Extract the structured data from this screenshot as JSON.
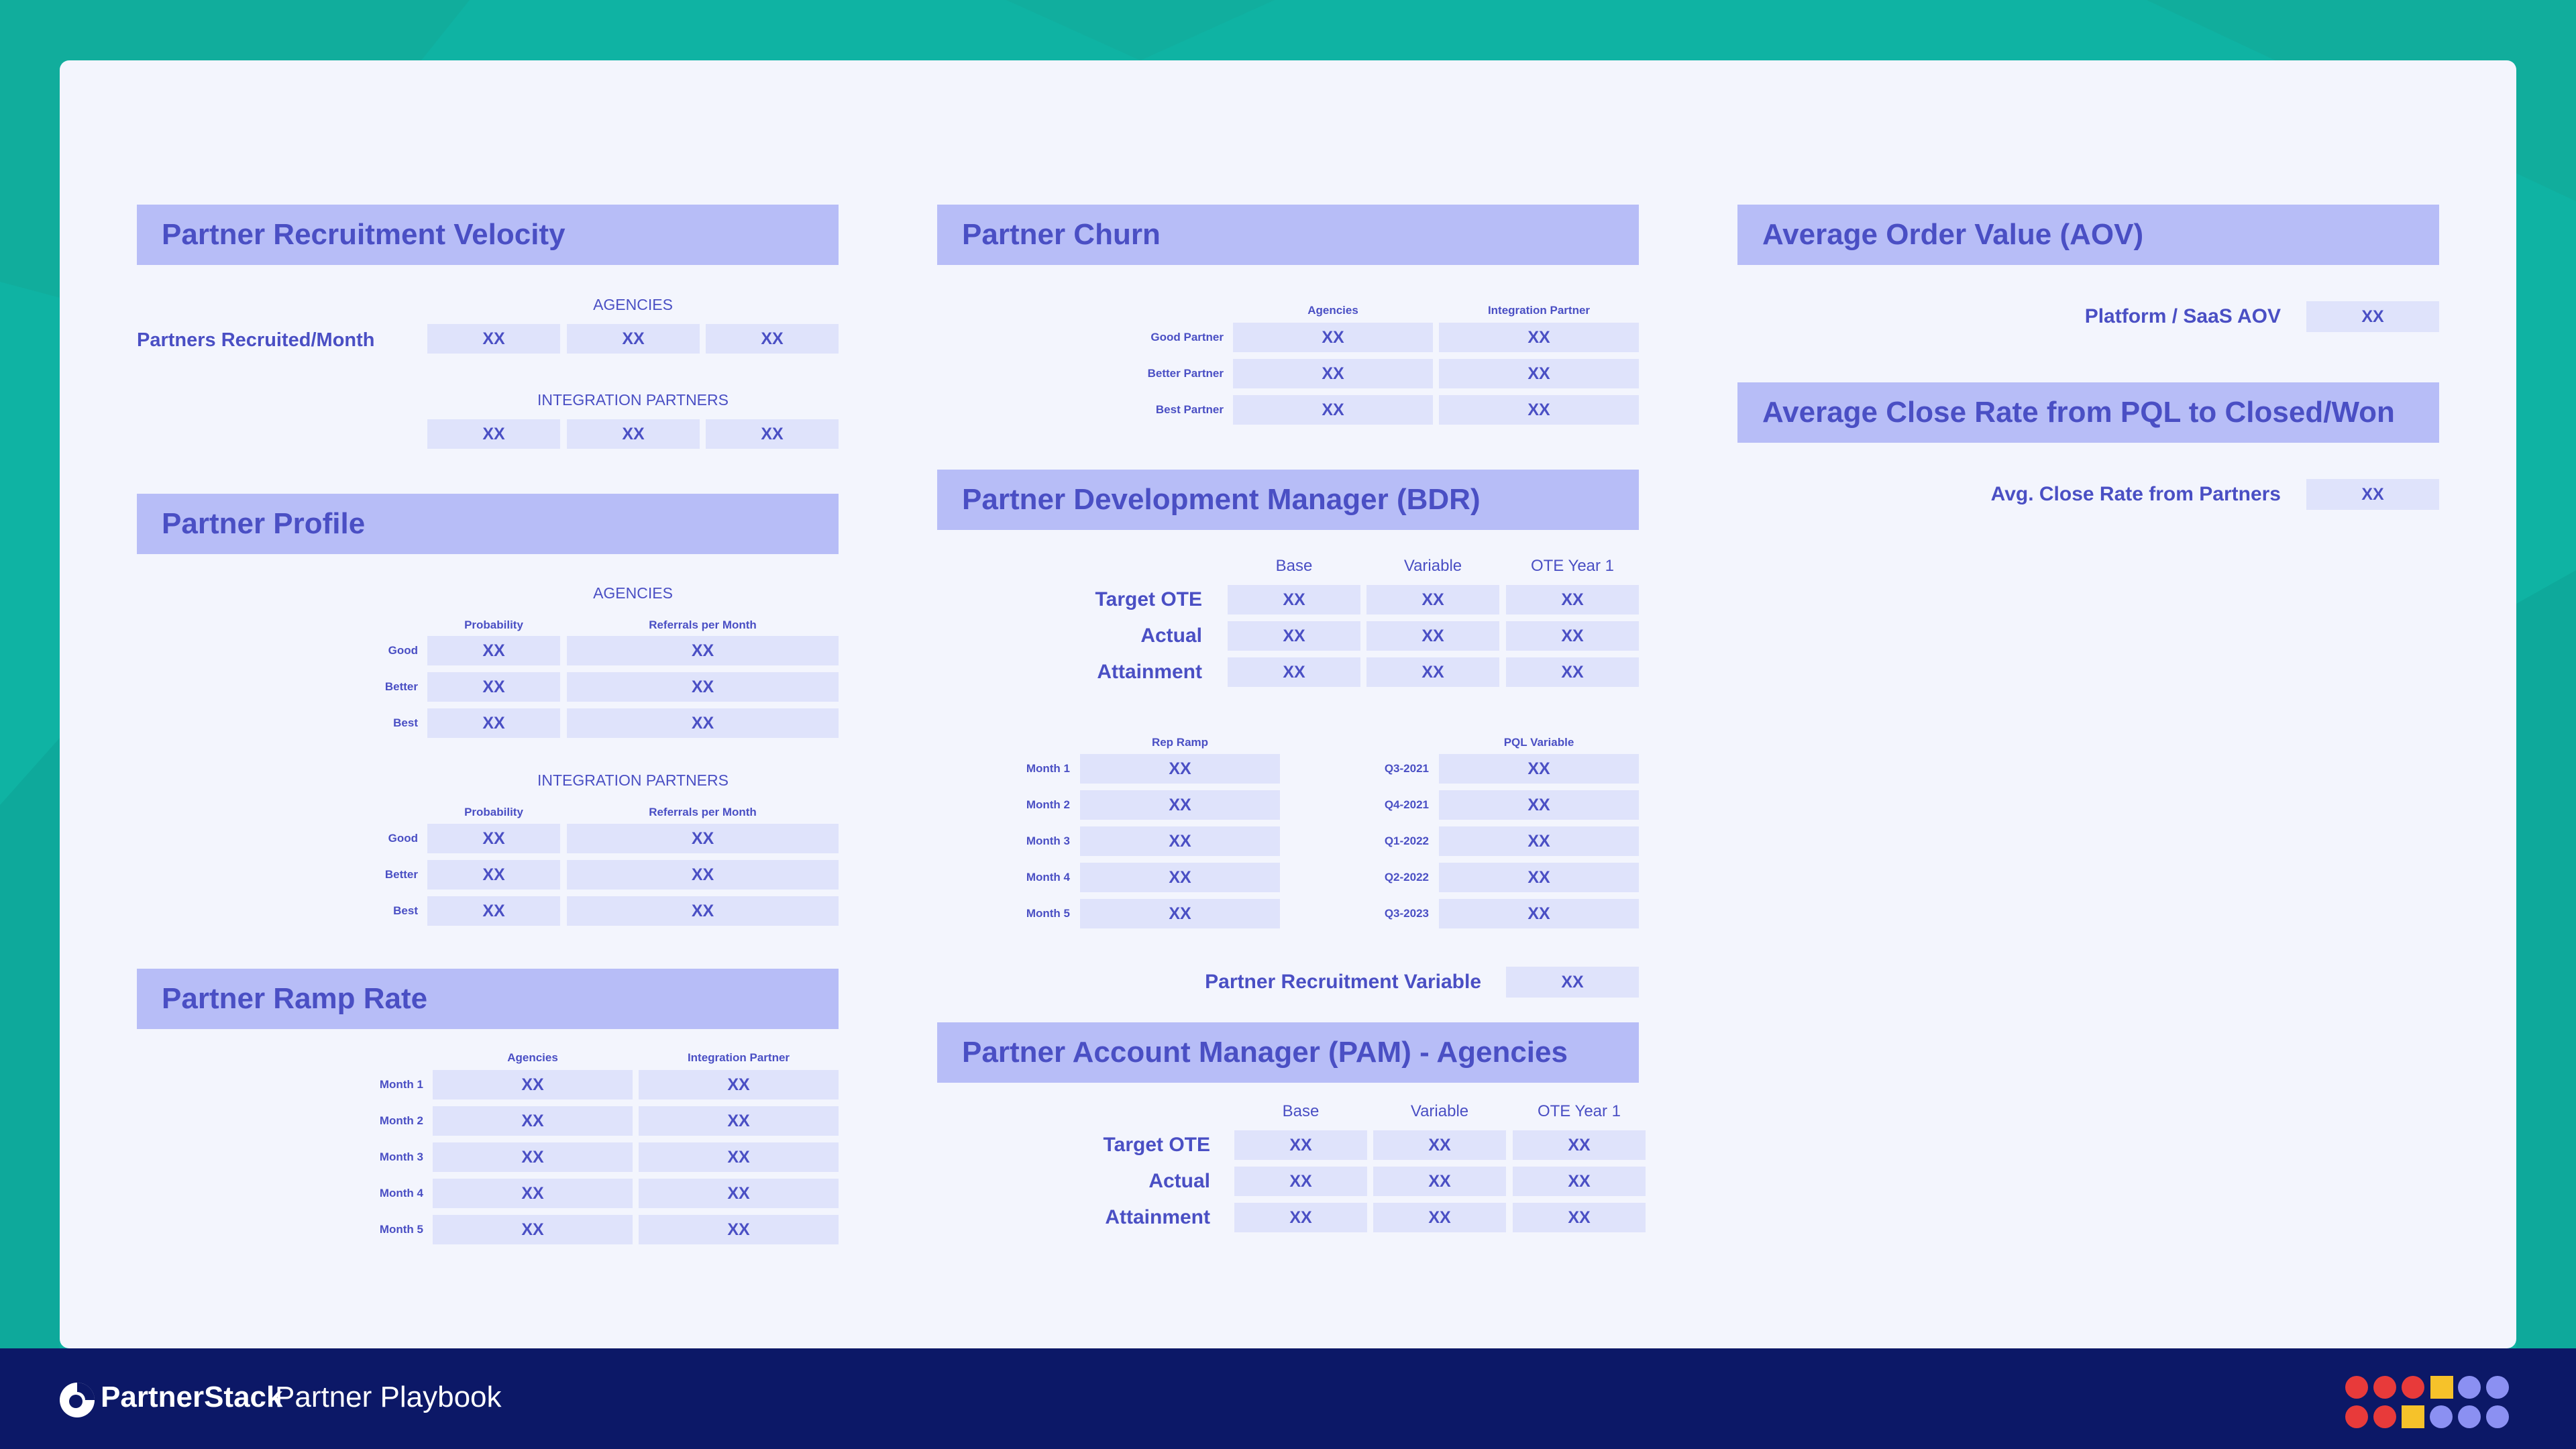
{
  "sections": {
    "recruitment": {
      "title": "Partner Recruitment Velocity",
      "agencies_label": "AGENCIES",
      "integration_label": "INTEGRATION PARTNERS",
      "row_label": "Partners Recruited/Month",
      "agency_values": [
        "XX",
        "XX",
        "XX"
      ],
      "integration_values": [
        "XX",
        "XX",
        "XX"
      ]
    },
    "profile": {
      "title": "Partner Profile",
      "agencies_label": "AGENCIES",
      "integration_label": "INTEGRATION PARTNERS",
      "col_probability": "Probability",
      "col_referrals": "Referrals per Month",
      "rows": [
        "Good",
        "Better",
        "Best"
      ],
      "agency_values": [
        [
          "XX",
          "XX"
        ],
        [
          "XX",
          "XX"
        ],
        [
          "XX",
          "XX"
        ]
      ],
      "integration_values": [
        [
          "XX",
          "XX"
        ],
        [
          "XX",
          "XX"
        ],
        [
          "XX",
          "XX"
        ]
      ]
    },
    "ramp": {
      "title": "Partner Ramp Rate",
      "col_agencies": "Agencies",
      "col_integration": "Integration Partner",
      "rows": [
        "Month 1",
        "Month 2",
        "Month 3",
        "Month 4",
        "Month 5"
      ],
      "values": [
        [
          "XX",
          "XX"
        ],
        [
          "XX",
          "XX"
        ],
        [
          "XX",
          "XX"
        ],
        [
          "XX",
          "XX"
        ],
        [
          "XX",
          "XX"
        ]
      ]
    },
    "churn": {
      "title": "Partner Churn",
      "col_agencies": "Agencies",
      "col_integration": "Integration Partner",
      "rows": [
        "Good Partner",
        "Better Partner",
        "Best Partner"
      ],
      "values": [
        [
          "XX",
          "XX"
        ],
        [
          "XX",
          "XX"
        ],
        [
          "XX",
          "XX"
        ]
      ]
    },
    "bdr": {
      "title": "Partner Development Manager (BDR)",
      "cols": [
        "Base",
        "Variable",
        "OTE Year 1"
      ],
      "rows": [
        "Target OTE",
        "Actual",
        "Attainment"
      ],
      "values": [
        [
          "XX",
          "XX",
          "XX"
        ],
        [
          "XX",
          "XX",
          "XX"
        ],
        [
          "XX",
          "XX",
          "XX"
        ]
      ],
      "rep_ramp_label": "Rep Ramp",
      "rep_ramp_rows": [
        "Month 1",
        "Month 2",
        "Month 3",
        "Month 4",
        "Month 5"
      ],
      "rep_ramp_values": [
        "XX",
        "XX",
        "XX",
        "XX",
        "XX"
      ],
      "pql_label": "PQL Variable",
      "pql_rows": [
        "Q3-2021",
        "Q4-2021",
        "Q1-2022",
        "Q2-2022",
        "Q3-2023"
      ],
      "pql_values": [
        "XX",
        "XX",
        "XX",
        "XX",
        "XX"
      ],
      "recruit_var_label": "Partner Recruitment Variable",
      "recruit_var_value": "XX"
    },
    "pam": {
      "title": "Partner Account Manager (PAM) - Agencies",
      "cols": [
        "Base",
        "Variable",
        "OTE Year 1"
      ],
      "rows": [
        "Target OTE",
        "Actual",
        "Attainment"
      ],
      "values": [
        [
          "XX",
          "XX",
          "XX"
        ],
        [
          "XX",
          "XX",
          "XX"
        ],
        [
          "XX",
          "XX",
          "XX"
        ]
      ]
    },
    "aov": {
      "title": "Average Order Value (AOV)",
      "row_label": "Platform / SaaS AOV",
      "value": "XX"
    },
    "close": {
      "title": "Average Close Rate from PQL to Closed/Won",
      "row_label": "Avg. Close Rate from Partners",
      "value": "XX"
    }
  },
  "footer": {
    "brand": "PartnerStack",
    "subtitle": "Partner Playbook",
    "logo_icon": "partnerstack-logo-icon",
    "decor_icon": "dot-grid-icon"
  },
  "colors": {
    "background": "#0fb3a3",
    "card": "#f3f5fd",
    "header": "#b7bdf7",
    "cell": "#dfe3fb",
    "text": "#4a4fc4",
    "footer": "#0c1867",
    "dot_red": "#e83a3a",
    "dot_yellow": "#f6c22a",
    "dot_purple": "#8b90f2"
  }
}
